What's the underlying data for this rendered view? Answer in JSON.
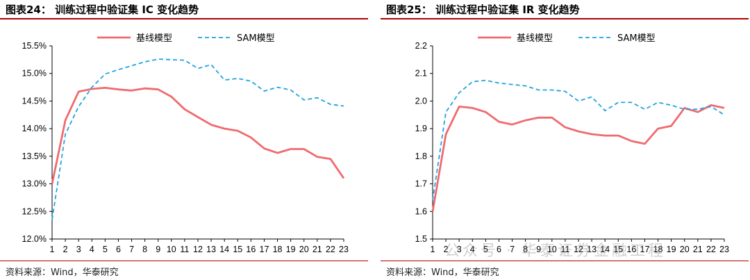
{
  "colors": {
    "baseline": "#f06a6e",
    "sam": "#1fa3e0",
    "accent": "#b00000"
  },
  "watermark": "公众号 · 华泰证券金融工程",
  "chart_data": [
    {
      "type": "line",
      "title": "图表24： 训练过程中验证集 IC 变化趋势",
      "source": "资料来源：Wind，华泰研究",
      "x": [
        1,
        2,
        3,
        4,
        5,
        6,
        7,
        8,
        9,
        10,
        11,
        12,
        13,
        14,
        15,
        16,
        17,
        18,
        19,
        20,
        21,
        22,
        23
      ],
      "ylim": [
        12.0,
        15.5
      ],
      "yticks": [
        12.0,
        12.5,
        13.0,
        13.5,
        14.0,
        14.5,
        15.0,
        15.5
      ],
      "ytick_labels": [
        "12.0%",
        "12.5%",
        "13.0%",
        "13.5%",
        "14.0%",
        "14.5%",
        "15.0%",
        "15.5%"
      ],
      "grid": false,
      "legend": "top",
      "series": [
        {
          "name": "基线模型",
          "style": "solid",
          "values": [
            13.0,
            14.15,
            14.67,
            14.72,
            14.74,
            14.71,
            14.69,
            14.73,
            14.71,
            14.58,
            14.35,
            14.21,
            14.07,
            14.0,
            13.96,
            13.84,
            13.64,
            13.56,
            13.63,
            13.63,
            13.49,
            13.45,
            13.1
          ]
        },
        {
          "name": "SAM模型",
          "style": "dashed",
          "values": [
            12.35,
            13.9,
            14.4,
            14.75,
            14.99,
            15.07,
            15.14,
            15.21,
            15.26,
            15.25,
            15.24,
            15.09,
            15.16,
            14.88,
            14.91,
            14.86,
            14.68,
            14.75,
            14.7,
            14.52,
            14.56,
            14.44,
            14.41
          ]
        }
      ]
    },
    {
      "type": "line",
      "title": "图表25： 训练过程中验证集 IR 变化趋势",
      "source": "资料来源：Wind，华泰研究",
      "x": [
        1,
        2,
        3,
        4,
        5,
        6,
        7,
        8,
        9,
        10,
        11,
        12,
        13,
        14,
        15,
        16,
        17,
        18,
        19,
        20,
        21,
        22,
        23
      ],
      "ylim": [
        1.5,
        2.2
      ],
      "yticks": [
        1.5,
        1.6,
        1.7,
        1.8,
        1.9,
        2.0,
        2.1,
        2.2
      ],
      "ytick_labels": [
        "1.5",
        "1.6",
        "1.7",
        "1.8",
        "1.9",
        "2.0",
        "2.1",
        "2.2"
      ],
      "grid": false,
      "legend": "top",
      "series": [
        {
          "name": "基线模型",
          "style": "solid",
          "values": [
            1.6,
            1.88,
            1.98,
            1.975,
            1.96,
            1.925,
            1.915,
            1.93,
            1.94,
            1.94,
            1.905,
            1.89,
            1.88,
            1.875,
            1.875,
            1.855,
            1.845,
            1.9,
            1.91,
            1.975,
            1.96,
            1.985,
            1.975
          ]
        },
        {
          "name": "SAM模型",
          "style": "dashed",
          "values": [
            1.64,
            1.96,
            2.03,
            2.07,
            2.075,
            2.065,
            2.06,
            2.055,
            2.04,
            2.04,
            2.035,
            2.0,
            2.015,
            1.965,
            1.995,
            1.995,
            1.97,
            1.995,
            1.985,
            1.97,
            1.97,
            1.98,
            1.95
          ]
        }
      ]
    }
  ]
}
